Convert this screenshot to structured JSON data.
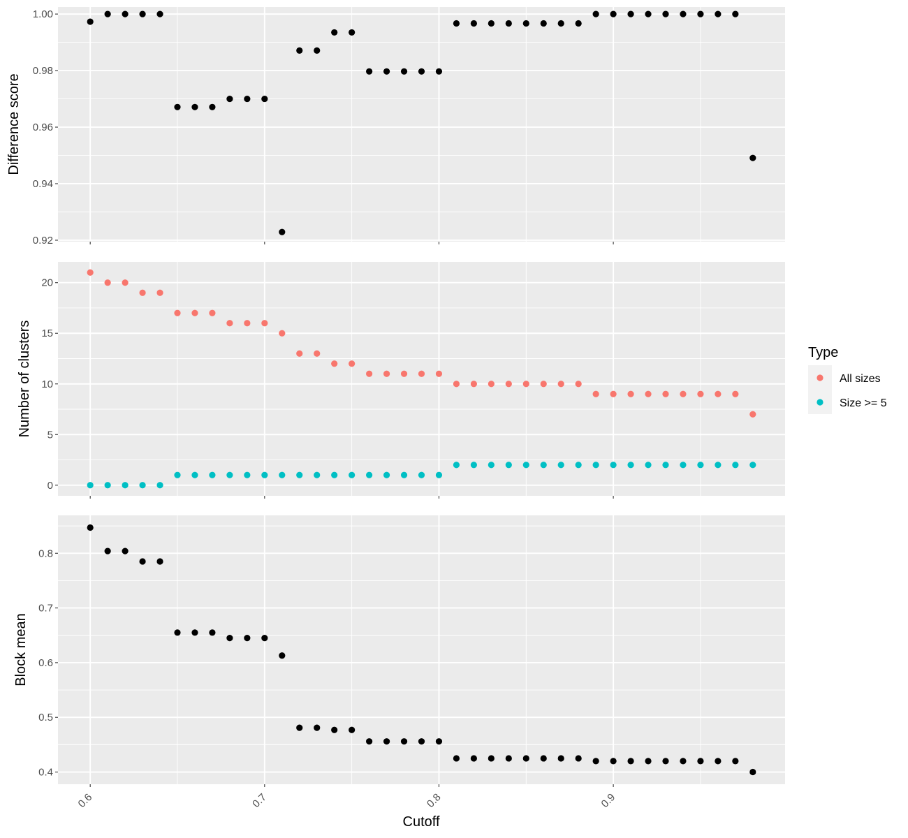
{
  "chart_data": [
    {
      "type": "scatter",
      "ylabel": "Difference score",
      "ylim": [
        0.9195,
        1.0025
      ],
      "yticks": [
        0.92,
        0.94,
        0.96,
        0.98,
        1.0
      ],
      "ytick_labels": [
        "0.92",
        "0.94",
        "0.96",
        "0.98",
        "1.00"
      ],
      "series": [
        {
          "x": [
            0.6,
            0.61,
            0.62,
            0.63,
            0.64,
            0.65,
            0.66,
            0.67,
            0.68,
            0.69,
            0.7,
            0.71,
            0.72,
            0.73,
            0.74,
            0.75,
            0.76,
            0.77,
            0.78,
            0.79,
            0.8,
            0.81,
            0.82,
            0.83,
            0.84,
            0.85,
            0.86,
            0.87,
            0.88,
            0.89,
            0.9,
            0.91,
            0.92,
            0.93,
            0.94,
            0.95,
            0.96,
            0.97,
            0.98
          ],
          "y": [
            0.9973,
            1.0,
            1.0,
            1.0,
            1.0,
            0.9671,
            0.9671,
            0.9671,
            0.97,
            0.97,
            0.97,
            0.9229,
            0.9871,
            0.9871,
            0.9935,
            0.9935,
            0.9797,
            0.9797,
            0.9797,
            0.9797,
            0.9797,
            0.9967,
            0.9967,
            0.9967,
            0.9967,
            0.9967,
            0.9967,
            0.9967,
            0.9967,
            1.0,
            1.0,
            1.0,
            1.0,
            1.0,
            1.0,
            1.0,
            1.0,
            1.0,
            0.9491
          ]
        }
      ]
    },
    {
      "type": "scatter",
      "ylabel": "Number of clusters",
      "ylim": [
        -1.05,
        22.05
      ],
      "yticks": [
        0,
        5,
        10,
        15,
        20
      ],
      "ytick_labels": [
        "0",
        "5",
        "10",
        "15",
        "20"
      ],
      "series": [
        {
          "name": "All sizes",
          "color": "#F8766D",
          "x": [
            0.6,
            0.61,
            0.62,
            0.63,
            0.64,
            0.65,
            0.66,
            0.67,
            0.68,
            0.69,
            0.7,
            0.71,
            0.72,
            0.73,
            0.74,
            0.75,
            0.76,
            0.77,
            0.78,
            0.79,
            0.8,
            0.81,
            0.82,
            0.83,
            0.84,
            0.85,
            0.86,
            0.87,
            0.88,
            0.89,
            0.9,
            0.91,
            0.92,
            0.93,
            0.94,
            0.95,
            0.96,
            0.97,
            0.98
          ],
          "y": [
            21,
            20,
            20,
            19,
            19,
            17,
            17,
            17,
            16,
            16,
            16,
            15,
            13,
            13,
            12,
            12,
            11,
            11,
            11,
            11,
            11,
            10,
            10,
            10,
            10,
            10,
            10,
            10,
            10,
            9,
            9,
            9,
            9,
            9,
            9,
            9,
            9,
            9,
            7
          ]
        },
        {
          "name": "Size >= 5",
          "color": "#00BFC4",
          "x": [
            0.6,
            0.61,
            0.62,
            0.63,
            0.64,
            0.65,
            0.66,
            0.67,
            0.68,
            0.69,
            0.7,
            0.71,
            0.72,
            0.73,
            0.74,
            0.75,
            0.76,
            0.77,
            0.78,
            0.79,
            0.8,
            0.81,
            0.82,
            0.83,
            0.84,
            0.85,
            0.86,
            0.87,
            0.88,
            0.89,
            0.9,
            0.91,
            0.92,
            0.93,
            0.94,
            0.95,
            0.96,
            0.97,
            0.98
          ],
          "y": [
            0,
            0,
            0,
            0,
            0,
            1,
            1,
            1,
            1,
            1,
            1,
            1,
            1,
            1,
            1,
            1,
            1,
            1,
            1,
            1,
            1,
            2,
            2,
            2,
            2,
            2,
            2,
            2,
            2,
            2,
            2,
            2,
            2,
            2,
            2,
            2,
            2,
            2,
            2
          ]
        }
      ]
    },
    {
      "type": "scatter",
      "ylabel": "Block mean",
      "xlabel": "Cutoff",
      "ylim": [
        0.3777,
        0.8693
      ],
      "yticks": [
        0.4,
        0.5,
        0.6,
        0.7,
        0.8
      ],
      "ytick_labels": [
        "0.4",
        "0.5",
        "0.6",
        "0.7",
        "0.8"
      ],
      "series": [
        {
          "x": [
            0.6,
            0.61,
            0.62,
            0.63,
            0.64,
            0.65,
            0.66,
            0.67,
            0.68,
            0.69,
            0.7,
            0.71,
            0.72,
            0.73,
            0.74,
            0.75,
            0.76,
            0.77,
            0.78,
            0.79,
            0.8,
            0.81,
            0.82,
            0.83,
            0.84,
            0.85,
            0.86,
            0.87,
            0.88,
            0.89,
            0.9,
            0.91,
            0.92,
            0.93,
            0.94,
            0.95,
            0.96,
            0.97,
            0.98
          ],
          "y": [
            0.847,
            0.804,
            0.804,
            0.785,
            0.785,
            0.655,
            0.655,
            0.655,
            0.645,
            0.645,
            0.645,
            0.613,
            0.481,
            0.481,
            0.477,
            0.477,
            0.456,
            0.456,
            0.456,
            0.456,
            0.456,
            0.425,
            0.425,
            0.425,
            0.425,
            0.425,
            0.425,
            0.425,
            0.425,
            0.42,
            0.42,
            0.42,
            0.42,
            0.42,
            0.42,
            0.42,
            0.42,
            0.42,
            0.4
          ]
        }
      ]
    }
  ],
  "x_axis": {
    "label": "Cutoff",
    "xlim": [
      0.5815,
      0.9985
    ],
    "ticks": [
      0.6,
      0.7,
      0.8,
      0.9
    ],
    "tick_labels": [
      "0.6",
      "0.7",
      "0.8",
      "0.9"
    ]
  },
  "legend": {
    "title": "Type",
    "placement": "right",
    "entries": [
      {
        "label": "All sizes",
        "color": "#F8766D"
      },
      {
        "label": "Size >= 5",
        "color": "#00BFC4"
      }
    ]
  },
  "style": {
    "panel_bg": "#EBEBEB",
    "grid_color": "#FFFFFF",
    "point_color": "#000000"
  }
}
